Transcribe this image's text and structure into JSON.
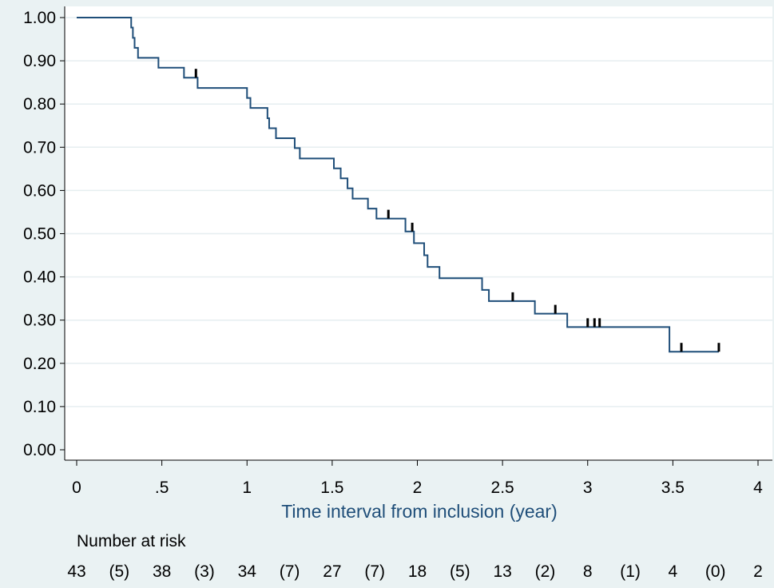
{
  "chart_data": {
    "type": "line",
    "title": "",
    "xlabel": "Time interval from inclusion (year)",
    "ylabel": "",
    "xlim": [
      0,
      4
    ],
    "ylim": [
      0,
      1
    ],
    "x_ticks": [
      "0",
      ".5",
      "1",
      "1.5",
      "2",
      "2.5",
      "3",
      "3.5",
      "4"
    ],
    "y_ticks": [
      "0.00",
      "0.10",
      "0.20",
      "0.30",
      "0.40",
      "0.50",
      "0.60",
      "0.70",
      "0.80",
      "0.90",
      "1.00"
    ],
    "grid": "horizontal",
    "colors": {
      "line": "#1f4e79",
      "censor": "#000000",
      "background": "#eaf2f3",
      "plot_area": "#ffffff",
      "axis_label": "#1f4e79"
    },
    "series": [
      {
        "steps": [
          [
            0,
            1.0
          ],
          [
            0.32,
            0.977
          ],
          [
            0.33,
            0.953
          ],
          [
            0.34,
            0.93
          ],
          [
            0.36,
            0.907
          ],
          [
            0.48,
            0.884
          ],
          [
            0.63,
            0.861
          ],
          [
            0.71,
            0.837
          ],
          [
            1.0,
            0.814
          ],
          [
            1.02,
            0.791
          ],
          [
            1.12,
            0.767
          ],
          [
            1.13,
            0.744
          ],
          [
            1.17,
            0.721
          ],
          [
            1.28,
            0.698
          ],
          [
            1.31,
            0.674
          ],
          [
            1.51,
            0.651
          ],
          [
            1.55,
            0.628
          ],
          [
            1.59,
            0.605
          ],
          [
            1.62,
            0.581
          ],
          [
            1.71,
            0.558
          ],
          [
            1.76,
            0.535
          ],
          [
            1.93,
            0.505
          ],
          [
            1.98,
            0.478
          ],
          [
            2.04,
            0.45
          ],
          [
            2.06,
            0.423
          ],
          [
            2.13,
            0.397
          ],
          [
            2.38,
            0.37
          ],
          [
            2.42,
            0.344
          ],
          [
            2.69,
            0.315
          ],
          [
            2.88,
            0.284
          ],
          [
            3.48,
            0.227
          ],
          [
            3.77,
            0.227
          ]
        ],
        "censored": [
          {
            "x": 0.7,
            "y": 0.861
          },
          {
            "x": 1.83,
            "y": 0.535
          },
          {
            "x": 1.97,
            "y": 0.505
          },
          {
            "x": 2.56,
            "y": 0.344
          },
          {
            "x": 2.81,
            "y": 0.315
          },
          {
            "x": 3.0,
            "y": 0.284
          },
          {
            "x": 3.04,
            "y": 0.284
          },
          {
            "x": 3.07,
            "y": 0.284
          },
          {
            "x": 3.55,
            "y": 0.227
          },
          {
            "x": 3.77,
            "y": 0.227
          }
        ]
      }
    ],
    "risk_table": {
      "title": "Number at risk",
      "values": [
        "43",
        "(5)",
        "38",
        "(3)",
        "34",
        "(7)",
        "27",
        "(7)",
        "18",
        "(5)",
        "13",
        "(2)",
        "8",
        "(1)",
        "4",
        "(0)",
        "2"
      ]
    }
  }
}
